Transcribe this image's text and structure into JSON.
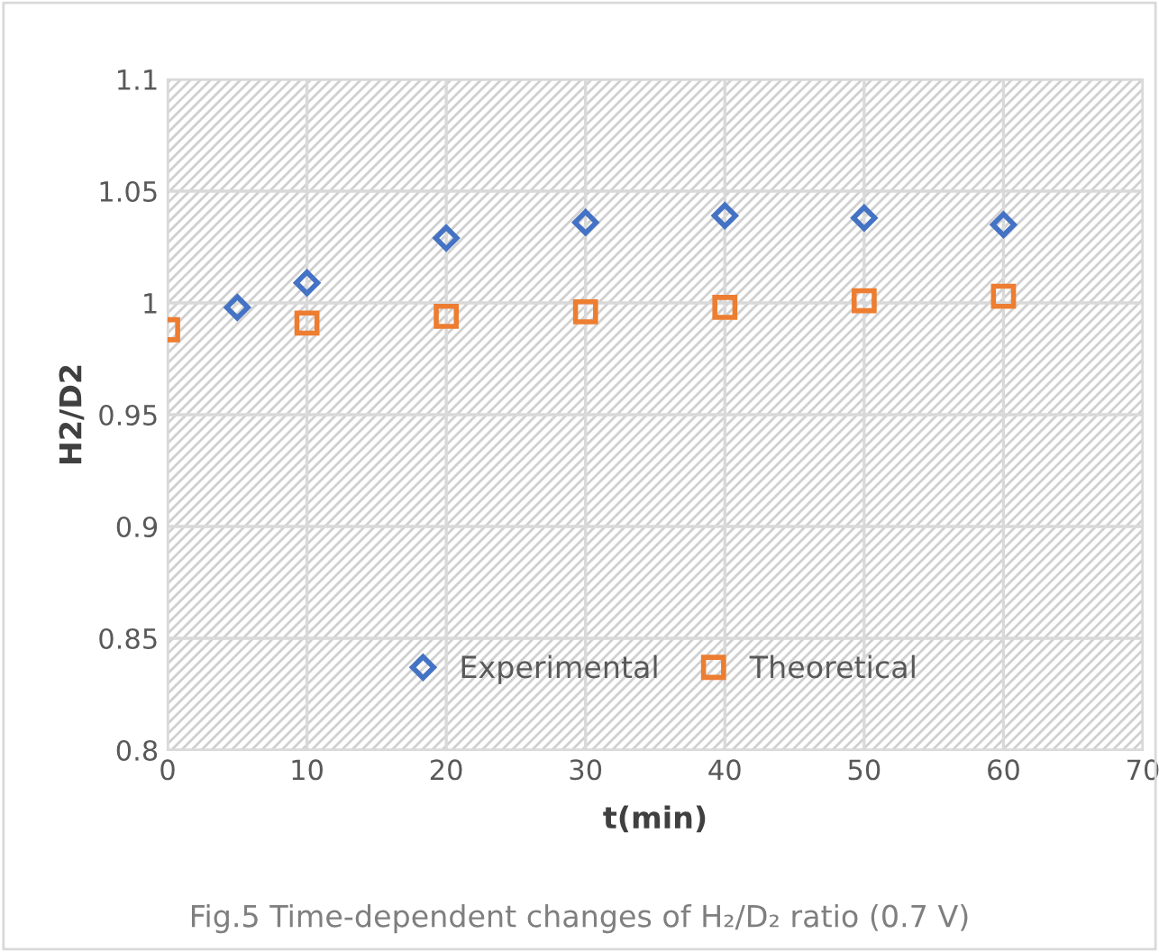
{
  "chart_data": {
    "type": "scatter",
    "xlabel": "t(min)",
    "ylabel": "H2/D2",
    "annotations": [
      "Fig.5 Time-dependent changes of H₂/D₂ ratio (0.7 V)"
    ],
    "series": [
      {
        "name": "Experimental",
        "color": "#4472c4",
        "marker": "diamond",
        "x": [
          5,
          10,
          20,
          30,
          40,
          50,
          60
        ],
        "values": [
          0.998,
          1.009,
          1.029,
          1.036,
          1.039,
          1.038,
          1.035
        ]
      },
      {
        "name": "Theoretical",
        "color": "#ed7d31",
        "marker": "square",
        "x": [
          0,
          10,
          20,
          30,
          40,
          50,
          60
        ],
        "values": [
          0.988,
          0.991,
          0.994,
          0.996,
          0.998,
          1.001,
          1.003
        ]
      }
    ],
    "xlim": [
      0,
      70
    ],
    "xticks": [
      0,
      10,
      20,
      30,
      40,
      50,
      60,
      70
    ],
    "ylim": [
      0.8,
      1.1
    ],
    "yticks": [
      0.8,
      0.85,
      0.9,
      0.95,
      1,
      1.05,
      1.1
    ],
    "grid": true,
    "legend": "center"
  }
}
